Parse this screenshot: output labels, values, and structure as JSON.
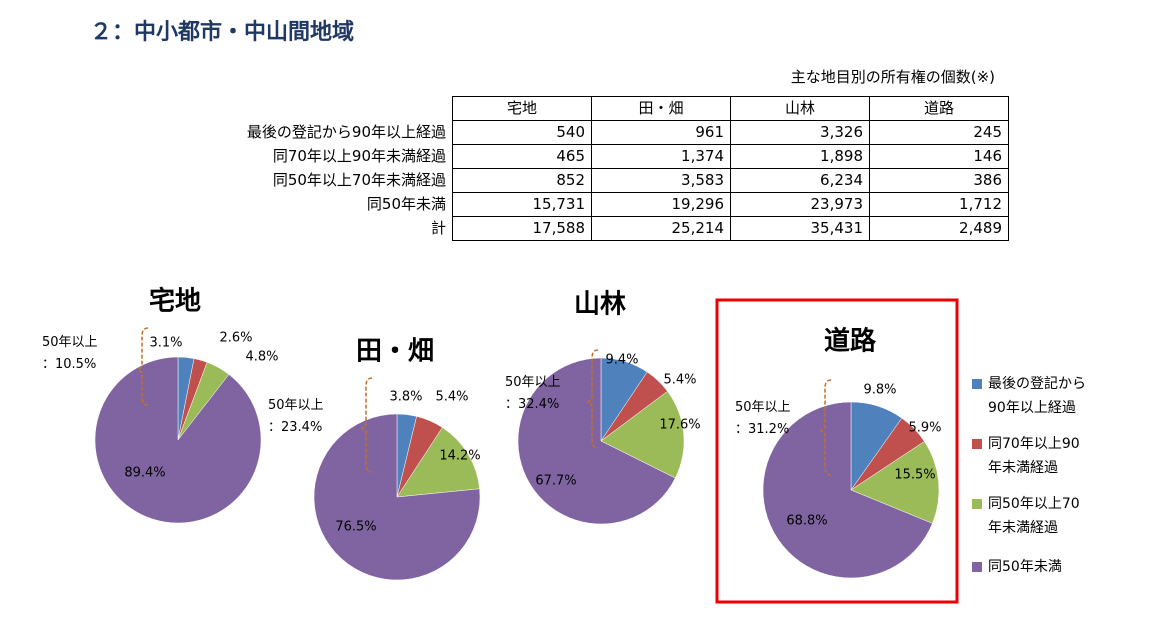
{
  "title": "２：中小都市・中山間地域",
  "table": {
    "caption": "主な地目別の所有権の個数(※)",
    "header": [
      "宅地",
      "田・畑",
      "山林",
      "道路"
    ],
    "rows": [
      [
        "最後の登記から90年以上経過",
        "540",
        "961",
        "3,326",
        "245"
      ],
      [
        "同70年以上90年未満経過",
        "465",
        "1,374",
        "1,898",
        "146"
      ],
      [
        "同50年以上70年未満経過",
        "852",
        "3,583",
        "6,234",
        "386"
      ],
      [
        "同50年未満",
        "15,731",
        "19,296",
        "23,973",
        "1,712"
      ],
      [
        "計",
        "17,588",
        "25,214",
        "35,431",
        "2,489"
      ]
    ]
  },
  "chart_data": [
    {
      "type": "pie",
      "title": "宅地",
      "annotation": "50年以上\n：10.5%",
      "categories": [
        "最後の登記から90年以上経過",
        "同70年以上90年未満経過",
        "同50年以上70年未満経過",
        "同50年未満"
      ],
      "colors": [
        "#4f81bd",
        "#c0504d",
        "#9bbb59",
        "#8064a2"
      ],
      "values": [
        3.1,
        2.6,
        4.8,
        89.4
      ],
      "value_labels": [
        "3.1%",
        "2.6%",
        "4.8%",
        "89.4%"
      ]
    },
    {
      "type": "pie",
      "title": "田・畑",
      "annotation": "50年以上\n：23.4%",
      "categories": [
        "最後の登記から90年以上経過",
        "同70年以上90年未満経過",
        "同50年以上70年未満経過",
        "同50年未満"
      ],
      "colors": [
        "#4f81bd",
        "#c0504d",
        "#9bbb59",
        "#8064a2"
      ],
      "values": [
        3.8,
        5.4,
        14.2,
        76.5
      ],
      "value_labels": [
        "3.8%",
        "5.4%",
        "14.2%",
        "76.5%"
      ]
    },
    {
      "type": "pie",
      "title": "山林",
      "annotation": "50年以上\n：32.4%",
      "categories": [
        "最後の登記から90年以上経過",
        "同70年以上90年未満経過",
        "同50年以上70年未満経過",
        "同50年未満"
      ],
      "colors": [
        "#4f81bd",
        "#c0504d",
        "#9bbb59",
        "#8064a2"
      ],
      "values": [
        9.4,
        5.4,
        17.6,
        67.7
      ],
      "value_labels": [
        "9.4%",
        "5.4%",
        "17.6%",
        "67.7%"
      ]
    },
    {
      "type": "pie",
      "title": "道路",
      "annotation": "50年以上\n：31.2%",
      "categories": [
        "最後の登記から90年以上経過",
        "同70年以上90年未満経過",
        "同50年以上70年未満経過",
        "同50年未満"
      ],
      "colors": [
        "#4f81bd",
        "#c0504d",
        "#9bbb59",
        "#8064a2"
      ],
      "values": [
        9.8,
        5.9,
        15.5,
        68.8
      ],
      "value_labels": [
        "9.8%",
        "5.9%",
        "15.5%",
        "68.8%"
      ]
    }
  ]
}
